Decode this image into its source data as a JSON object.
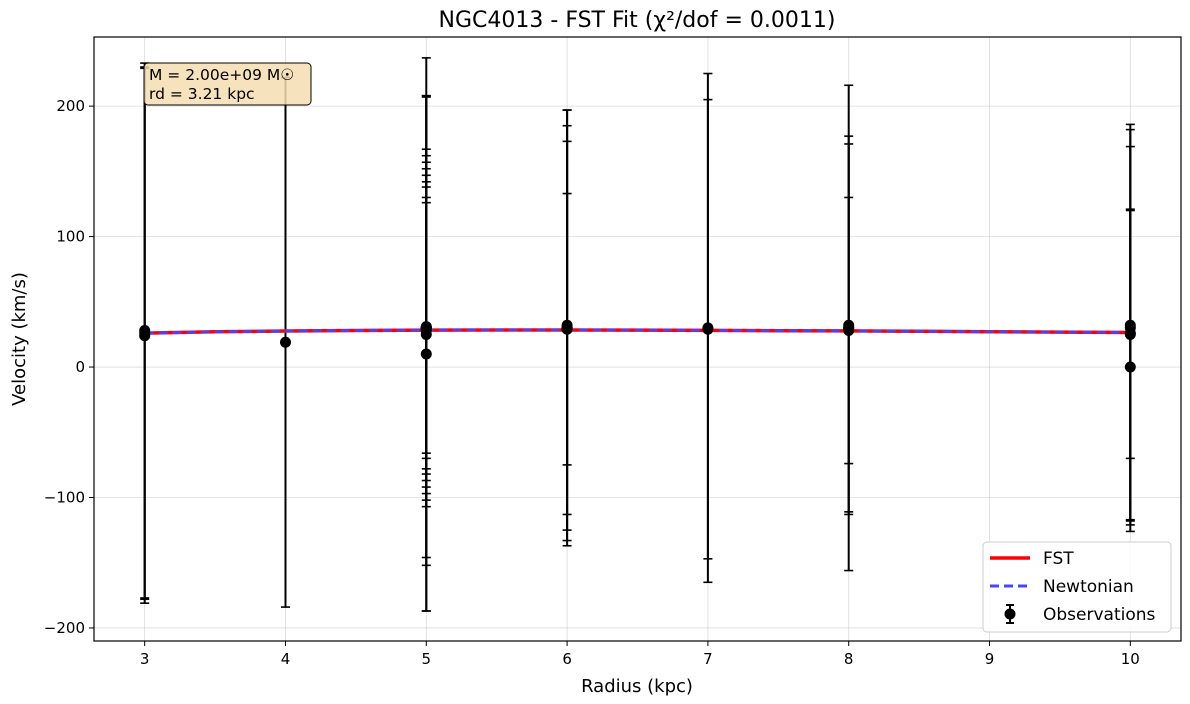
{
  "chart_data": {
    "type": "scatter",
    "title": "NGC4013 - FST Fit (χ²/dof = 0.0011)",
    "xlabel": "Radius (kpc)",
    "ylabel": "Velocity (km/s)",
    "xlim": [
      2.64,
      10.36
    ],
    "ylim": [
      -210,
      253
    ],
    "xticks": [
      3,
      4,
      5,
      6,
      7,
      8,
      9,
      10
    ],
    "yticks": [
      -200,
      -100,
      0,
      100,
      200
    ],
    "ytick_labels": [
      "−200",
      "−100",
      "0",
      "100",
      "200"
    ],
    "grid": true,
    "legend_position": "lower right",
    "annotation": [
      "M = 2.00e+09 M☉",
      "rd = 3.21 kpc"
    ],
    "series": [
      {
        "name": "FST",
        "type": "line",
        "color": "#ff0000",
        "x": [
          3,
          3.5,
          4,
          4.5,
          5,
          5.5,
          6,
          6.5,
          7,
          7.5,
          8,
          8.5,
          9,
          9.5,
          10
        ],
        "y": [
          26.0,
          27.0,
          27.6,
          28.0,
          28.3,
          28.4,
          28.4,
          28.3,
          28.1,
          27.9,
          27.7,
          27.4,
          27.1,
          26.8,
          26.5
        ]
      },
      {
        "name": "Newtonian",
        "type": "line",
        "style": "dashed",
        "color": "#4646ff",
        "x": [
          3,
          3.5,
          4,
          4.5,
          5,
          5.5,
          6,
          6.5,
          7,
          7.5,
          8,
          8.5,
          9,
          9.5,
          10
        ],
        "y": [
          26.0,
          27.0,
          27.6,
          28.0,
          28.3,
          28.4,
          28.4,
          28.3,
          28.1,
          27.9,
          27.7,
          27.4,
          27.1,
          26.8,
          26.5
        ]
      },
      {
        "name": "Observations",
        "type": "errorbar",
        "color": "#000000",
        "points": [
          {
            "x": 3,
            "y": 28,
            "err": 205
          },
          {
            "x": 3,
            "y": 24,
            "err": 205
          },
          {
            "x": 3,
            "y": 26,
            "err": 204
          },
          {
            "x": 4,
            "y": 19,
            "err": 203
          },
          {
            "x": 5,
            "y": 31,
            "err": 177
          },
          {
            "x": 5,
            "y": 28,
            "err": 180
          },
          {
            "x": 5,
            "y": 25,
            "err": 212
          },
          {
            "x": 5,
            "y": 10,
            "err": 197
          },
          {
            "x": 5,
            "y": 30,
            "err": 137
          },
          {
            "x": 5,
            "y": 30,
            "err": 132
          },
          {
            "x": 5,
            "y": 30,
            "err": 127
          },
          {
            "x": 5,
            "y": 30,
            "err": 122
          },
          {
            "x": 5,
            "y": 30,
            "err": 117
          },
          {
            "x": 5,
            "y": 30,
            "err": 112
          },
          {
            "x": 5,
            "y": 30,
            "err": 108
          },
          {
            "x": 5,
            "y": 30,
            "err": 100
          },
          {
            "x": 5,
            "y": 30,
            "err": 96
          },
          {
            "x": 6,
            "y": 32,
            "err": 165
          },
          {
            "x": 6,
            "y": 30,
            "err": 155
          },
          {
            "x": 6,
            "y": 29,
            "err": 104
          },
          {
            "x": 6,
            "y": 30,
            "err": 143
          },
          {
            "x": 6,
            "y": 30,
            "err": 167
          },
          {
            "x": 7,
            "y": 29,
            "err": 176
          },
          {
            "x": 7,
            "y": 30,
            "err": 195
          },
          {
            "x": 8,
            "y": 32,
            "err": 145
          },
          {
            "x": 8,
            "y": 30,
            "err": 186
          },
          {
            "x": 8,
            "y": 28,
            "err": 102
          },
          {
            "x": 8,
            "y": 30,
            "err": 141
          },
          {
            "x": 10,
            "y": 32,
            "err": 150
          },
          {
            "x": 10,
            "y": 26,
            "err": 143
          },
          {
            "x": 10,
            "y": 0,
            "err": 121
          },
          {
            "x": 10,
            "y": 25,
            "err": 95
          },
          {
            "x": 10,
            "y": 30,
            "err": 156
          }
        ]
      }
    ]
  }
}
